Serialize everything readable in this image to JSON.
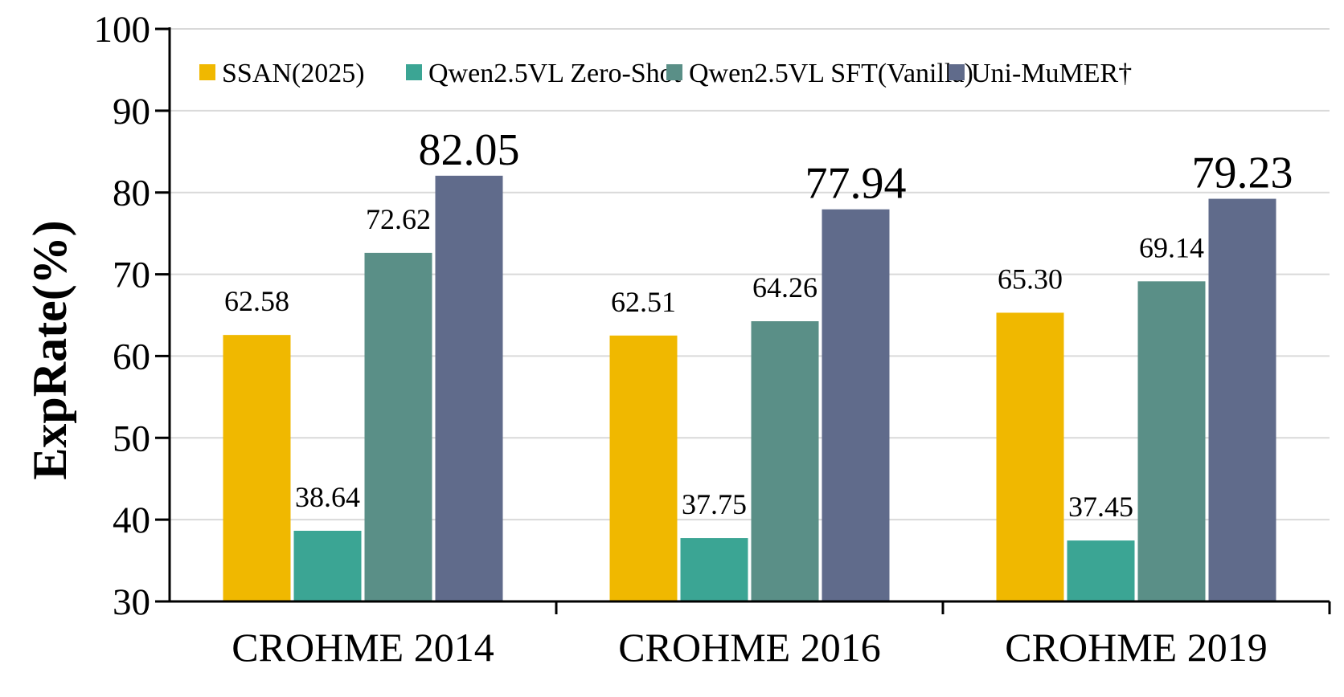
{
  "chart_data": {
    "type": "bar",
    "title": "",
    "xlabel": "",
    "ylabel": "ExpRate(%)",
    "ylim": [
      30,
      100
    ],
    "yticks": [
      30,
      40,
      50,
      60,
      70,
      80,
      90,
      100
    ],
    "grid": true,
    "legend_position": "top",
    "categories": [
      "CROHME 2014",
      "CROHME 2016",
      "CROHME 2019"
    ],
    "series": [
      {
        "name": "SSAN(2025)",
        "color": "#F0B800",
        "values": [
          62.58,
          62.51,
          65.3
        ],
        "labels": [
          "62.58",
          "62.51",
          "65.30"
        ]
      },
      {
        "name": "Qwen2.5VL Zero-Shot",
        "color": "#3BA594",
        "values": [
          38.64,
          37.75,
          37.45
        ],
        "labels": [
          "38.64",
          "37.75",
          "37.45"
        ]
      },
      {
        "name": "Qwen2.5VL SFT(Vanilla)",
        "color": "#5A8F87",
        "values": [
          72.62,
          64.26,
          69.14
        ],
        "labels": [
          "72.62",
          "64.26",
          "69.14"
        ]
      },
      {
        "name": "Uni-MuMER†",
        "color": "#606B8B",
        "values": [
          82.05,
          77.94,
          79.23
        ],
        "labels": [
          "82.05",
          "77.94",
          "79.23"
        ],
        "emphasized": true
      }
    ]
  }
}
